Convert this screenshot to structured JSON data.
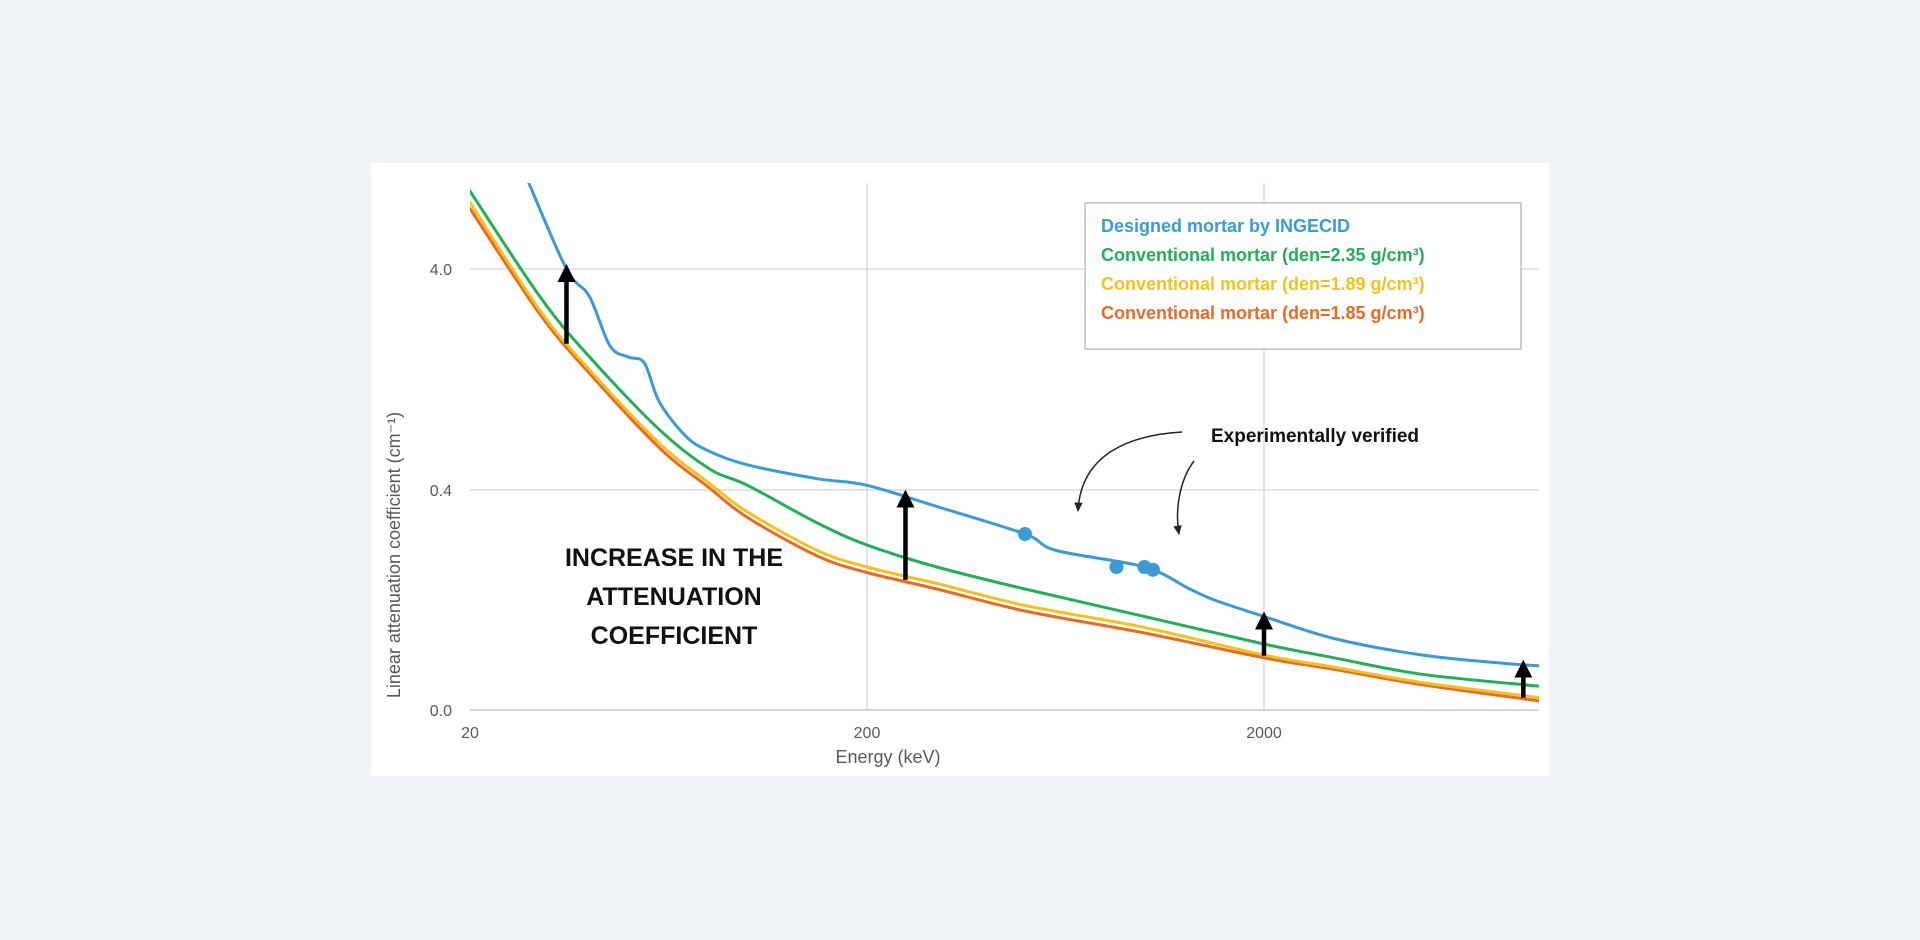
{
  "chart_data": {
    "type": "line",
    "xlabel": "Energy (keV)",
    "ylabel": "Linear attenuation coefficient (cm⁻¹)",
    "x_scale": "log",
    "xlim": [
      20,
      10000
    ],
    "x_ticks": [
      20,
      200,
      2000
    ],
    "x_tick_labels": [
      "20",
      "200",
      "2000"
    ],
    "y_ticks": [
      0.0,
      0.4,
      4.0
    ],
    "y_tick_labels": [
      "0.0",
      "0.4",
      "4.0"
    ],
    "grid": true,
    "legend_position": "top-right",
    "series": [
      {
        "name": "Designed mortar by INGECID",
        "color": "#3a9bd5",
        "points": [
          [
            28,
            10.0
          ],
          [
            35,
            4.0
          ],
          [
            40,
            3.0
          ],
          [
            45,
            1.8
          ],
          [
            50,
            1.6
          ],
          [
            55,
            1.5
          ],
          [
            60,
            1.0
          ],
          [
            70,
            0.7
          ],
          [
            80,
            0.6
          ],
          [
            100,
            0.52
          ],
          [
            150,
            0.45
          ],
          [
            200,
            0.42
          ],
          [
            300,
            0.37
          ],
          [
            500,
            0.32
          ],
          [
            600,
            0.29
          ],
          [
            1000,
            0.26
          ],
          [
            1300,
            0.22
          ],
          [
            1500,
            0.2
          ],
          [
            2000,
            0.17
          ],
          [
            3000,
            0.13
          ],
          [
            5000,
            0.1
          ],
          [
            8000,
            0.085
          ],
          [
            10000,
            0.08
          ]
        ]
      },
      {
        "name": "Conventional mortar (den=2.35 g/cm³)",
        "color": "#1fb156",
        "points": [
          [
            20,
            9.0
          ],
          [
            30,
            3.0
          ],
          [
            40,
            1.6
          ],
          [
            60,
            0.75
          ],
          [
            80,
            0.5
          ],
          [
            100,
            0.42
          ],
          [
            150,
            0.34
          ],
          [
            200,
            0.3
          ],
          [
            300,
            0.26
          ],
          [
            500,
            0.22
          ],
          [
            1000,
            0.17
          ],
          [
            2000,
            0.12
          ],
          [
            3000,
            0.095
          ],
          [
            5000,
            0.065
          ],
          [
            10000,
            0.043
          ]
        ]
      },
      {
        "name": "Conventional mortar (den=1.89 g/cm³)",
        "color": "#f5c21b",
        "points": [
          [
            20,
            8.0
          ],
          [
            30,
            2.6
          ],
          [
            40,
            1.4
          ],
          [
            60,
            0.65
          ],
          [
            80,
            0.43
          ],
          [
            100,
            0.36
          ],
          [
            150,
            0.29
          ],
          [
            200,
            0.26
          ],
          [
            300,
            0.23
          ],
          [
            500,
            0.19
          ],
          [
            1000,
            0.15
          ],
          [
            2000,
            0.1
          ],
          [
            3000,
            0.078
          ],
          [
            5000,
            0.05
          ],
          [
            10000,
            0.022
          ]
        ]
      },
      {
        "name": "Conventional mortar (den=1.85 g/cm³)",
        "color": "#ea6a24",
        "points": [
          [
            20,
            7.5
          ],
          [
            30,
            2.5
          ],
          [
            40,
            1.35
          ],
          [
            60,
            0.62
          ],
          [
            80,
            0.41
          ],
          [
            100,
            0.35
          ],
          [
            150,
            0.28
          ],
          [
            200,
            0.25
          ],
          [
            300,
            0.22
          ],
          [
            500,
            0.18
          ],
          [
            1000,
            0.14
          ],
          [
            2000,
            0.095
          ],
          [
            3000,
            0.074
          ],
          [
            5000,
            0.046
          ],
          [
            10000,
            0.016
          ]
        ]
      }
    ],
    "verified_points": [
      [
        500,
        0.32
      ],
      [
        850,
        0.26
      ],
      [
        1000,
        0.26
      ],
      [
        1050,
        0.255
      ]
    ],
    "annotations": {
      "experimental": "Experimentally verified",
      "increase_lines": [
        "INCREASE IN THE",
        "ATTENUATION",
        "COEFFICIENT"
      ]
    }
  }
}
